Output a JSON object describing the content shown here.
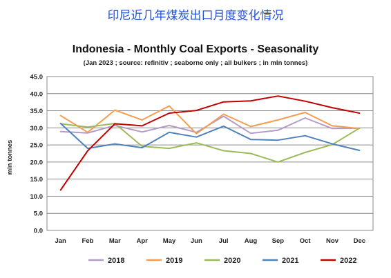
{
  "caption": "印尼近几年煤炭出口月度变化情况",
  "chart_data": {
    "type": "line",
    "title": "Indonesia - Monthly Coal Exports - Seasonality",
    "subtitle": "(Jan 2023 ; source: refinitiv ; seaborne only ; all bulkers ; in mln tonnes)",
    "xlabel": "",
    "ylabel": "mln tonnes",
    "ylim": [
      0,
      45
    ],
    "yticks": [
      "0.0",
      "5.0",
      "10.0",
      "15.0",
      "20.0",
      "25.0",
      "30.0",
      "35.0",
      "40.0",
      "45.0"
    ],
    "categories": [
      "Jan",
      "Feb",
      "Mar",
      "Apr",
      "May",
      "Jun",
      "Jul",
      "Aug",
      "Sep",
      "Oct",
      "Nov",
      "Dec"
    ],
    "grid": true,
    "legend": "bottom",
    "series": [
      {
        "name": "2018",
        "color": "#b49bc8",
        "values": [
          28.9,
          28.5,
          30.7,
          28.8,
          30.7,
          28.7,
          33.4,
          28.4,
          29.3,
          32.9,
          29.8,
          29.9
        ]
      },
      {
        "name": "2019",
        "color": "#f59c50",
        "values": [
          33.6,
          28.7,
          35.2,
          32.3,
          36.4,
          28.3,
          34.0,
          30.4,
          32.3,
          34.5,
          30.6,
          29.8
        ]
      },
      {
        "name": "2020",
        "color": "#9bbb59",
        "values": [
          31.2,
          30.2,
          31.3,
          24.6,
          24.0,
          25.6,
          23.3,
          22.5,
          20.0,
          22.8,
          25.1,
          29.9
        ]
      },
      {
        "name": "2021",
        "color": "#4f81bd",
        "values": [
          31.3,
          24.0,
          25.3,
          24.2,
          28.7,
          27.3,
          30.5,
          26.6,
          26.4,
          27.7,
          25.3,
          23.4
        ]
      },
      {
        "name": "2022",
        "color": "#c00000",
        "values": [
          11.8,
          23.3,
          31.2,
          30.6,
          34.3,
          35.1,
          37.6,
          37.9,
          39.3,
          37.8,
          35.9,
          34.3
        ]
      }
    ]
  }
}
